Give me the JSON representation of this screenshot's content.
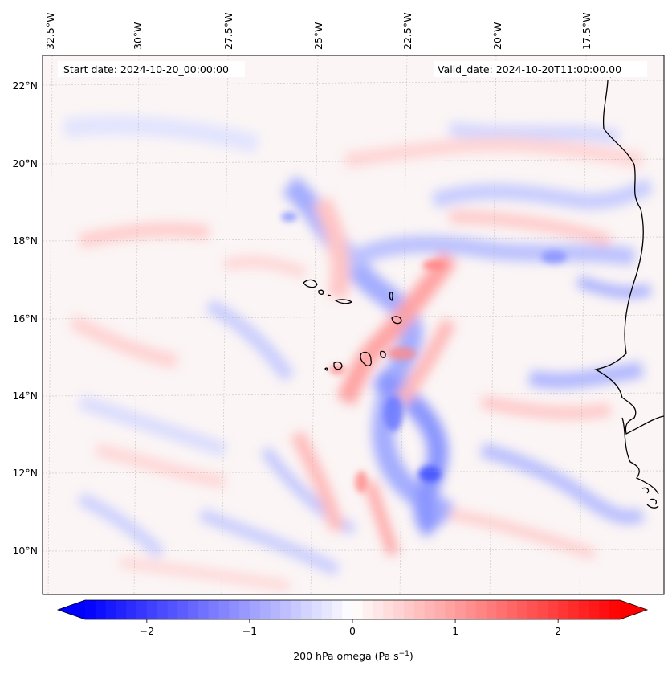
{
  "map": {
    "start_date_text": "Start date: 2024-10-20_00:00:00",
    "valid_date_text": "Valid_date: 2024-10-20T11:00:00.00",
    "lon_labels": [
      "32.5°W",
      "30°W",
      "27.5°W",
      "25°W",
      "22.5°W",
      "20°W",
      "17.5°W"
    ],
    "lat_labels": [
      "22°N",
      "20°N",
      "18°N",
      "16°N",
      "14°N",
      "12°N",
      "10°N"
    ],
    "field": "200 hPa omega",
    "coastline_color": "#000000"
  },
  "colorbar": {
    "label_main": "200 hPa omega (Pa s",
    "label_sup": "−1",
    "label_close": ")",
    "ticks": [
      "−2",
      "−1",
      "0",
      "1",
      "2"
    ],
    "tick_values": [
      -2,
      -1,
      0,
      1,
      2
    ],
    "range": [
      -2.6,
      2.6
    ],
    "extend": "both",
    "colormap": "bwr",
    "color_min": "#0000ff",
    "color_mid": "#ffffff",
    "color_max": "#ff0000"
  }
}
